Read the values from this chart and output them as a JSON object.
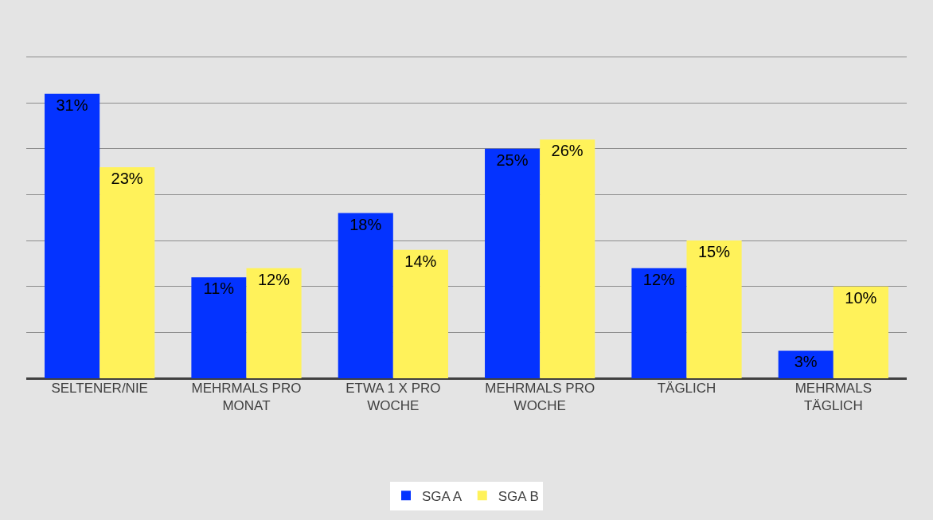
{
  "chart_data": {
    "type": "bar",
    "categories": [
      "SELTENER/NIE",
      "MEHRMALS PRO MONAT",
      "ETWA 1 X PRO WOCHE",
      "MEHRMALS PRO WOCHE",
      "TÄGLICH",
      "MEHRMALS TÄGLICH"
    ],
    "series": [
      {
        "name": "SGA A",
        "color": "#0433ff",
        "values": [
          31,
          11,
          18,
          25,
          12,
          3
        ],
        "value_labels": [
          "31%",
          "11%",
          "18%",
          "25%",
          "12%",
          "3%"
        ]
      },
      {
        "name": "SGA B",
        "color": "#fff25a",
        "values": [
          23,
          12,
          14,
          26,
          15,
          10
        ],
        "value_labels": [
          "23%",
          "12%",
          "14%",
          "26%",
          "15%",
          "10%"
        ]
      }
    ],
    "yticks": [
      {
        "value": 0,
        "label": null
      },
      {
        "value": 5,
        "label": null
      },
      {
        "value": 10,
        "label": null
      },
      {
        "value": 15,
        "label": null
      },
      {
        "value": 20,
        "label": null
      },
      {
        "value": 25,
        "label": null
      },
      {
        "value": 30,
        "label": null
      },
      {
        "value": 35,
        "label": null
      }
    ],
    "grid": "y",
    "legend": "bottom",
    "tick_labels": "x"
  }
}
